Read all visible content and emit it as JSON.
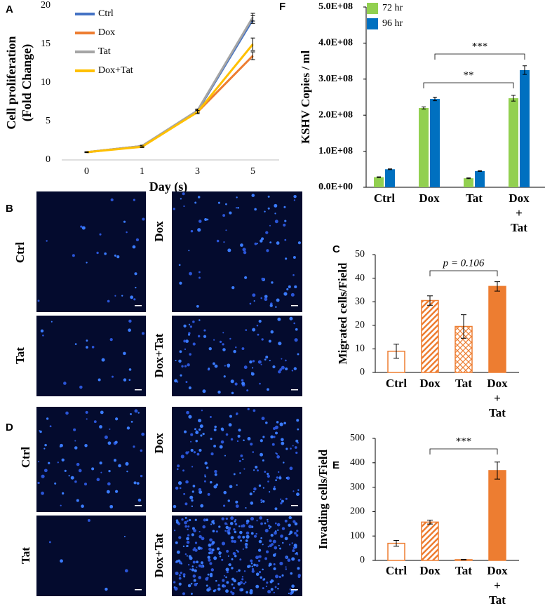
{
  "chart_data": [
    {
      "type": "line",
      "panel_label": "A",
      "ylabel": [
        "Cell proliferation",
        "(Fold Change)"
      ],
      "xlabel": "Day (s)",
      "categories": [
        "0",
        "1",
        "3",
        "5"
      ],
      "ylim": [
        0,
        20
      ],
      "yticks": [
        0,
        5,
        10,
        15,
        20
      ],
      "series": [
        {
          "name": "Ctrl",
          "color": "#4472c4",
          "values": [
            1,
            1.8,
            6.3,
            18.2
          ],
          "errors": [
            0.05,
            0.1,
            0.2,
            0.5
          ]
        },
        {
          "name": "Dox",
          "color": "#ed7d31",
          "values": [
            1,
            1.8,
            6.2,
            13.5
          ],
          "errors": [
            0.05,
            0.1,
            0.2,
            0.5
          ]
        },
        {
          "name": "Tat",
          "color": "#a5a5a5",
          "values": [
            1,
            1.8,
            6.4,
            18.5
          ],
          "errors": [
            0.05,
            0.1,
            0.2,
            0.5
          ]
        },
        {
          "name": "Dox+Tat",
          "color": "#ffc000",
          "values": [
            1,
            1.7,
            6.2,
            15
          ],
          "errors": [
            0.05,
            0.1,
            0.2,
            0.8
          ]
        }
      ]
    },
    {
      "type": "bar",
      "panel_label": "F",
      "ylabel": "KSHV Copies / ml",
      "categories": [
        "Ctrl",
        "Dox",
        "Tat",
        "Dox\n+\nTat"
      ],
      "ylim": [
        0,
        500000000
      ],
      "yticks": [
        {
          "value": 0,
          "label": "0.0E+00"
        },
        {
          "value": 100000000,
          "label": "1.0E+08"
        },
        {
          "value": 200000000,
          "label": "2.0E+08"
        },
        {
          "value": 300000000,
          "label": "3.0E+08"
        },
        {
          "value": 400000000,
          "label": "4.0E+08"
        },
        {
          "value": 500000000,
          "label": "5.0E+08"
        }
      ],
      "legend": "upper left",
      "series": [
        {
          "name": "72 hr",
          "color": "#92d050",
          "values": [
            28000000,
            220000000,
            25000000,
            247000000
          ],
          "errors": [
            1000000,
            3000000,
            1000000,
            8000000
          ]
        },
        {
          "name": "96 hr",
          "color": "#0070c0",
          "values": [
            50000000,
            245000000,
            45000000,
            325000000
          ],
          "errors": [
            1000000,
            5000000,
            1000000,
            12000000
          ]
        }
      ],
      "annotations": [
        "**",
        "***"
      ]
    },
    {
      "type": "bar",
      "panel_label": "C",
      "ylabel": "Migrated cells/Field",
      "categories": [
        "Ctrl",
        "Dox",
        "Tat",
        "Dox\n+\nTat"
      ],
      "ylim": [
        0,
        50
      ],
      "yticks": [
        0,
        10,
        20,
        30,
        40,
        50
      ],
      "color": "#ed7d31",
      "bar_styles": [
        "outline",
        "stripes",
        "dots",
        "solid"
      ],
      "values": [
        9,
        30.5,
        19.5,
        36.5
      ],
      "errors": [
        3,
        2,
        5,
        2
      ],
      "annotations": [
        "p = 0.106"
      ]
    },
    {
      "type": "bar",
      "panel_label": "E",
      "ylabel": "Invading cells/Field",
      "categories": [
        "Ctrl",
        "Dox",
        "Tat",
        "Dox\n+\nTat"
      ],
      "ylim": [
        0,
        500
      ],
      "yticks": [
        0,
        100,
        200,
        300,
        400,
        500
      ],
      "color": "#ed7d31",
      "bar_styles": [
        "outline",
        "stripes",
        "dots",
        "solid"
      ],
      "values": [
        70,
        157,
        3,
        368
      ],
      "errors": [
        12,
        8,
        1,
        35
      ],
      "annotations": [
        "***"
      ]
    }
  ],
  "image_panels": [
    {
      "panel_label": "B",
      "images": [
        {
          "label": "Ctrl"
        },
        {
          "label": "Dox"
        },
        {
          "label": "Tat"
        },
        {
          "label": "Dox+Tat"
        }
      ]
    },
    {
      "panel_label": "D",
      "images": [
        {
          "label": "Ctrl"
        },
        {
          "label": "Dox"
        },
        {
          "label": "Tat"
        },
        {
          "label": "Dox+Tat"
        }
      ]
    }
  ]
}
